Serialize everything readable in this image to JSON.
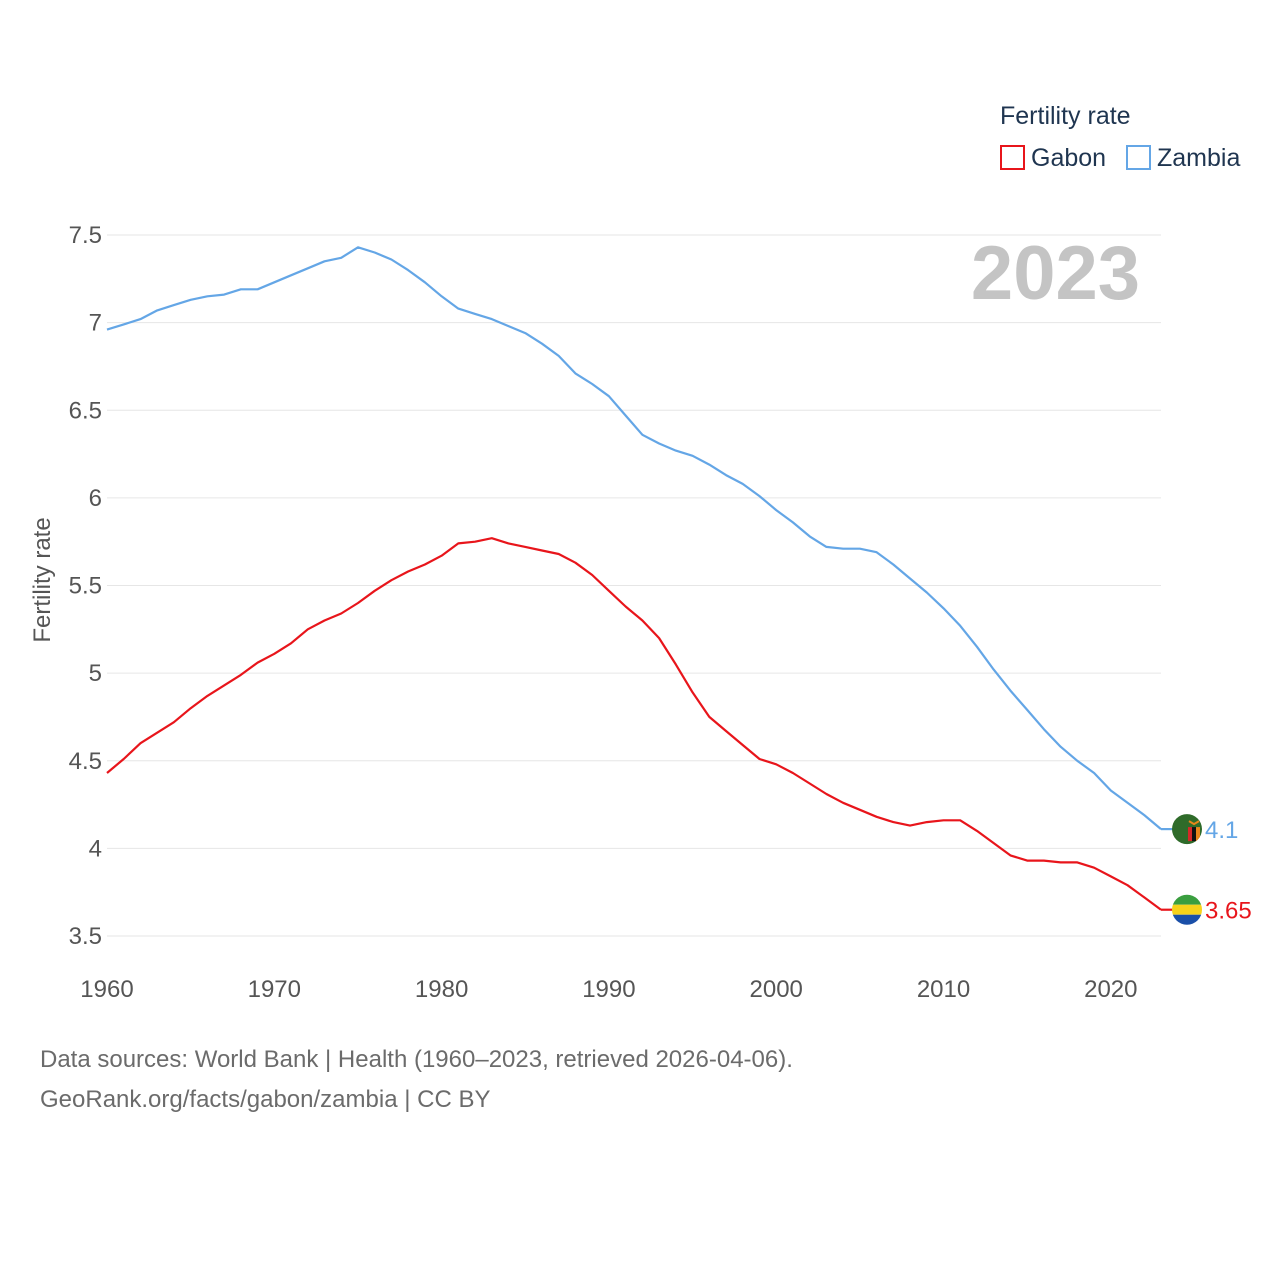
{
  "chart_data": {
    "type": "line",
    "title": "Fertility rate",
    "year_stamp": "2023",
    "ylabel": "Fertility rate",
    "xlabel": "",
    "xlim": [
      1960,
      2023
    ],
    "ylim": [
      3.4,
      7.6
    ],
    "x_ticks": [
      1960,
      1970,
      1980,
      1990,
      2000,
      2010,
      2020
    ],
    "y_ticks": [
      3.5,
      4,
      4.5,
      5,
      5.5,
      6,
      6.5,
      7,
      7.5
    ],
    "y_tick_labels": [
      "3.5",
      "4",
      "4.5",
      "5",
      "5.5",
      "6",
      "6.5",
      "7",
      "7.5"
    ],
    "grid": true,
    "legend_position": "top-right",
    "x": [
      1960,
      1961,
      1962,
      1963,
      1964,
      1965,
      1966,
      1967,
      1968,
      1969,
      1970,
      1971,
      1972,
      1973,
      1974,
      1975,
      1976,
      1977,
      1978,
      1979,
      1980,
      1981,
      1982,
      1983,
      1984,
      1985,
      1986,
      1987,
      1988,
      1989,
      1990,
      1991,
      1992,
      1993,
      1994,
      1995,
      1996,
      1997,
      1998,
      1999,
      2000,
      2001,
      2002,
      2003,
      2004,
      2005,
      2006,
      2007,
      2008,
      2009,
      2010,
      2011,
      2012,
      2013,
      2014,
      2015,
      2016,
      2017,
      2018,
      2019,
      2020,
      2021,
      2022,
      2023
    ],
    "series": [
      {
        "name": "Gabon",
        "color": "#e8151b",
        "end_label": "3.65",
        "values": [
          4.43,
          4.51,
          4.6,
          4.66,
          4.72,
          4.8,
          4.87,
          4.93,
          4.99,
          5.06,
          5.11,
          5.17,
          5.25,
          5.3,
          5.34,
          5.4,
          5.47,
          5.53,
          5.58,
          5.62,
          5.67,
          5.74,
          5.75,
          5.77,
          5.74,
          5.72,
          5.7,
          5.68,
          5.63,
          5.56,
          5.47,
          5.38,
          5.3,
          5.2,
          5.05,
          4.89,
          4.75,
          4.67,
          4.59,
          4.51,
          4.48,
          4.43,
          4.37,
          4.31,
          4.26,
          4.22,
          4.18,
          4.15,
          4.13,
          4.15,
          4.16,
          4.16,
          4.1,
          4.03,
          3.96,
          3.93,
          3.93,
          3.92,
          3.92,
          3.89,
          3.84,
          3.79,
          3.72,
          3.65
        ]
      },
      {
        "name": "Zambia",
        "color": "#64a6e6",
        "end_label": "4.1",
        "values": [
          6.96,
          6.99,
          7.02,
          7.07,
          7.1,
          7.13,
          7.15,
          7.16,
          7.19,
          7.19,
          7.23,
          7.27,
          7.31,
          7.35,
          7.37,
          7.43,
          7.4,
          7.36,
          7.3,
          7.23,
          7.15,
          7.08,
          7.05,
          7.02,
          6.98,
          6.94,
          6.88,
          6.81,
          6.71,
          6.65,
          6.58,
          6.47,
          6.36,
          6.31,
          6.27,
          6.24,
          6.19,
          6.13,
          6.08,
          6.01,
          5.93,
          5.86,
          5.78,
          5.72,
          5.71,
          5.71,
          5.69,
          5.62,
          5.54,
          5.46,
          5.37,
          5.27,
          5.15,
          5.02,
          4.9,
          4.79,
          4.68,
          4.58,
          4.5,
          4.43,
          4.33,
          4.26,
          4.19,
          4.11
        ]
      }
    ],
    "source_line1": "Data sources: World Bank | Health (1960–2023, retrieved 2026-04-06).",
    "source_line2": "GeoRank.org/facts/gabon/zambia | CC BY"
  }
}
